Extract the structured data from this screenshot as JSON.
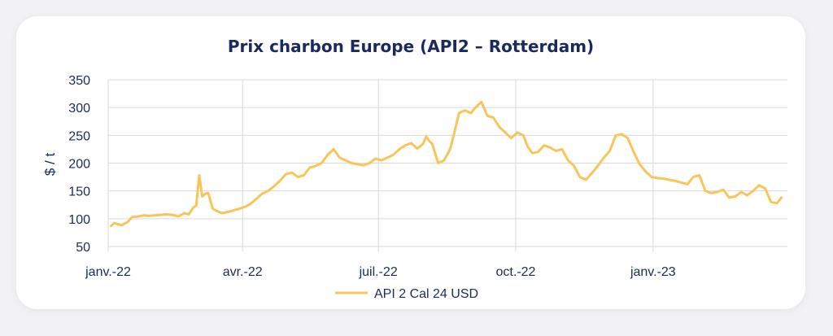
{
  "chart_data": {
    "type": "line",
    "title": "Prix charbon Europe (API2 – Rotterdam)",
    "ylabel": "$ / t",
    "xlabel": "",
    "ylim": [
      50,
      350
    ],
    "yticks": [
      50,
      100,
      150,
      200,
      250,
      300,
      350
    ],
    "xticks": [
      {
        "label": "janv.-22",
        "date": "2022-01-01"
      },
      {
        "label": "avr.-22",
        "date": "2022-04-01"
      },
      {
        "label": "juil.-22",
        "date": "2022-07-01"
      },
      {
        "label": "oct.-22",
        "date": "2022-10-01"
      },
      {
        "label": "janv.-23",
        "date": "2023-01-01"
      }
    ],
    "grid": true,
    "legend_position": "bottom",
    "series": [
      {
        "name": "API 2 Cal 24 USD",
        "color": "#f7c55a",
        "x": [
          "2022-01-03",
          "2022-01-05",
          "2022-01-08",
          "2022-01-10",
          "2022-01-14",
          "2022-01-17",
          "2022-01-21",
          "2022-01-25",
          "2022-01-28",
          "2022-02-01",
          "2022-02-05",
          "2022-02-09",
          "2022-02-13",
          "2022-02-17",
          "2022-02-21",
          "2022-02-24",
          "2022-02-27",
          "2022-03-01",
          "2022-03-03",
          "2022-03-05",
          "2022-03-07",
          "2022-03-09",
          "2022-03-12",
          "2022-03-14",
          "2022-03-18",
          "2022-03-22",
          "2022-03-26",
          "2022-03-30",
          "2022-04-03",
          "2022-04-06",
          "2022-04-10",
          "2022-04-14",
          "2022-04-18",
          "2022-04-22",
          "2022-04-26",
          "2022-04-30",
          "2022-05-04",
          "2022-05-08",
          "2022-05-12",
          "2022-05-16",
          "2022-05-20",
          "2022-05-24",
          "2022-05-28",
          "2022-06-01",
          "2022-06-05",
          "2022-06-09",
          "2022-06-13",
          "2022-06-17",
          "2022-06-21",
          "2022-06-25",
          "2022-06-29",
          "2022-07-03",
          "2022-07-07",
          "2022-07-11",
          "2022-07-15",
          "2022-07-19",
          "2022-07-23",
          "2022-07-27",
          "2022-07-31",
          "2022-08-02",
          "2022-08-04",
          "2022-08-06",
          "2022-08-10",
          "2022-08-14",
          "2022-08-18",
          "2022-08-20",
          "2022-08-24",
          "2022-08-28",
          "2022-09-01",
          "2022-09-04",
          "2022-09-08",
          "2022-09-12",
          "2022-09-16",
          "2022-09-20",
          "2022-09-24",
          "2022-09-28",
          "2022-10-02",
          "2022-10-06",
          "2022-10-09",
          "2022-10-12",
          "2022-10-16",
          "2022-10-20",
          "2022-10-24",
          "2022-10-28",
          "2022-11-01",
          "2022-11-05",
          "2022-11-09",
          "2022-11-13",
          "2022-11-17",
          "2022-11-21",
          "2022-11-25",
          "2022-11-29",
          "2022-12-03",
          "2022-12-07",
          "2022-12-11",
          "2022-12-15",
          "2022-12-19",
          "2022-12-23",
          "2022-12-27",
          "2022-12-31",
          "2023-01-04",
          "2023-01-08",
          "2023-01-12",
          "2023-01-16",
          "2023-01-20",
          "2023-01-24",
          "2023-01-28",
          "2023-02-01",
          "2023-02-05",
          "2023-02-09",
          "2023-02-13",
          "2023-02-17",
          "2023-02-21",
          "2023-02-25",
          "2023-03-01",
          "2023-03-05",
          "2023-03-09",
          "2023-03-13",
          "2023-03-17",
          "2023-03-21",
          "2023-03-25",
          "2023-03-28"
        ],
        "values": [
          87,
          92,
          90,
          88,
          94,
          103,
          104,
          106,
          105,
          106,
          107,
          108,
          107,
          104,
          110,
          108,
          120,
          124,
          178,
          140,
          145,
          146,
          118,
          115,
          110,
          112,
          115,
          118,
          122,
          126,
          135,
          145,
          150,
          158,
          168,
          180,
          183,
          175,
          178,
          192,
          195,
          200,
          215,
          225,
          210,
          205,
          200,
          198,
          196,
          200,
          208,
          205,
          210,
          215,
          225,
          232,
          236,
          226,
          235,
          248,
          240,
          235,
          200,
          205,
          225,
          245,
          290,
          295,
          290,
          300,
          310,
          285,
          282,
          265,
          255,
          245,
          255,
          250,
          230,
          218,
          220,
          232,
          228,
          222,
          225,
          205,
          195,
          175,
          170,
          182,
          195,
          210,
          222,
          250,
          252,
          245,
          220,
          198,
          185,
          175,
          173,
          172,
          170,
          168,
          165,
          162,
          175,
          178,
          150,
          146,
          148,
          152,
          138,
          140,
          148,
          142,
          150,
          160,
          155,
          130,
          128,
          138
        ]
      }
    ]
  }
}
